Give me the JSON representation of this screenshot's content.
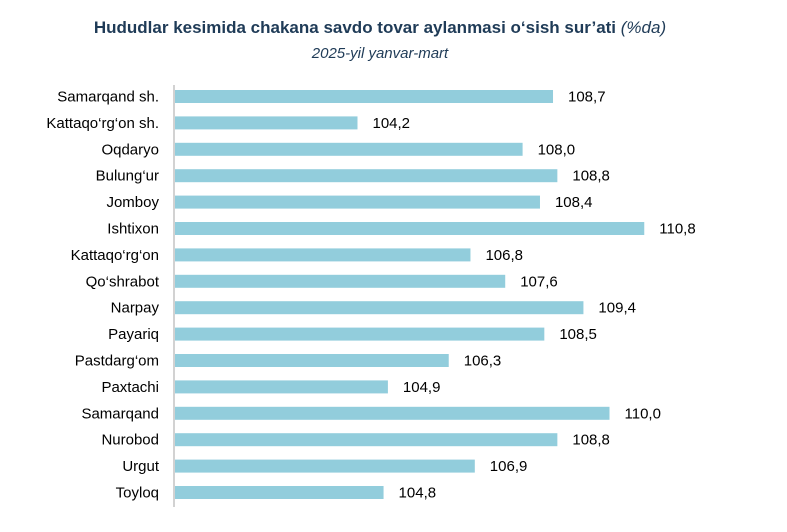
{
  "chart_data": {
    "type": "bar",
    "orientation": "horizontal",
    "title": "Hududlar kesimida chakana savdo tovar aylanmasi o‘sish sur’ati",
    "title_unit": "(%da)",
    "subtitle": "2025-yil yanvar-mart",
    "categories": [
      "Samarqand sh.",
      "Kattaqo‘rg‘on sh.",
      "Oqdaryo",
      "Bulung‘ur",
      "Jomboy",
      "Ishtixon",
      "Kattaqo‘rg‘on",
      "Qo‘shrabot",
      "Narpay",
      "Payariq",
      "Pastdarg‘om",
      "Paxtachi",
      "Samarqand",
      "Nurobod",
      "Urgut",
      "Toyloq"
    ],
    "values": [
      108.7,
      104.2,
      108.0,
      108.8,
      108.4,
      110.8,
      106.8,
      107.6,
      109.4,
      108.5,
      106.3,
      104.9,
      110.0,
      108.8,
      106.9,
      104.8
    ],
    "value_labels": [
      "108,7",
      "104,2",
      "108,0",
      "108,8",
      "108,4",
      "110,8",
      "106,8",
      "107,6",
      "109,4",
      "108,5",
      "106,3",
      "104,9",
      "110,0",
      "108,8",
      "106,9",
      "104,8"
    ],
    "xlim": [
      100,
      112
    ],
    "bar_color": "#92cddc",
    "axis_color": "#a6a6a6",
    "grid": false,
    "legend": "none"
  }
}
